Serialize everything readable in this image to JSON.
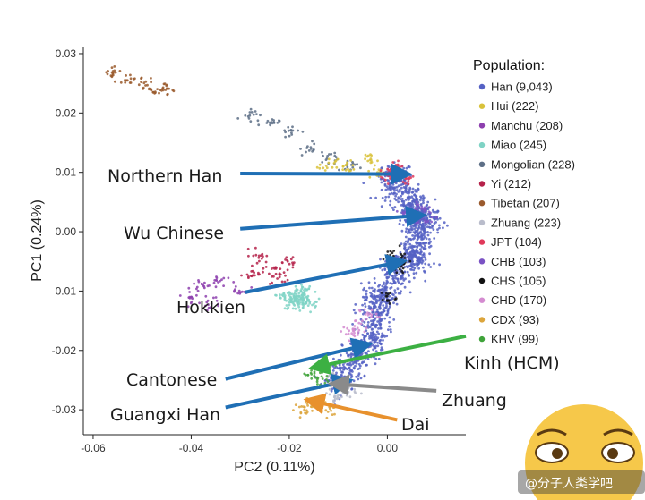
{
  "chart_data": {
    "type": "scatter",
    "xlabel": "PC2 (0.11%)",
    "ylabel": "PC1 (0.24%)",
    "xlim": [
      -0.062,
      0.016
    ],
    "ylim": [
      -0.0342,
      0.0312
    ],
    "xticks": [
      -0.06,
      -0.04,
      -0.02,
      0.0
    ],
    "xtick_labels": [
      "-0.06",
      "-0.04",
      "-0.02",
      "0.00"
    ],
    "yticks": [
      0.03,
      0.02,
      0.01,
      0.0,
      -0.01,
      -0.02,
      -0.03
    ],
    "ytick_labels": [
      "0.03",
      "0.02",
      "0.01",
      "0.00",
      "-0.01",
      "-0.02",
      "-0.03"
    ],
    "grid": false,
    "legend": {
      "title": "Population:",
      "position": "right",
      "entries": [
        {
          "label": "Han (9,043)",
          "color": "#5561c4"
        },
        {
          "label": "Hui (222)",
          "color": "#d9c23a"
        },
        {
          "label": "Manchu (208)",
          "color": "#8d3fae"
        },
        {
          "label": "Miao (245)",
          "color": "#7fd3c5"
        },
        {
          "label": "Mongolian (228)",
          "color": "#5d6f86"
        },
        {
          "label": "Yi (212)",
          "color": "#b5224a"
        },
        {
          "label": "Tibetan (207)",
          "color": "#9a5a2d"
        },
        {
          "label": "Zhuang (223)",
          "color": "#b9bccb"
        },
        {
          "label": "JPT (104)",
          "color": "#e0395a"
        },
        {
          "label": "CHB (103)",
          "color": "#7a52c4"
        },
        {
          "label": "CHS (105)",
          "color": "#111111"
        },
        {
          "label": "CHD (170)",
          "color": "#d48bd0"
        },
        {
          "label": "CDX (93)",
          "color": "#dca53c"
        },
        {
          "label": "KHV (99)",
          "color": "#3fa33a"
        }
      ]
    },
    "clusters": [
      {
        "series": "Han (9,043)",
        "points": [
          [
            0.002,
            0.009
          ],
          [
            0.004,
            0.006
          ],
          [
            0.006,
            0.003
          ],
          [
            0.007,
            0.001
          ],
          [
            0.006,
            -0.002
          ],
          [
            0.005,
            -0.004
          ],
          [
            0.003,
            -0.006
          ],
          [
            0.001,
            -0.008
          ],
          [
            -0.001,
            -0.011
          ],
          [
            -0.002,
            -0.014
          ],
          [
            -0.003,
            -0.017
          ],
          [
            -0.004,
            -0.019
          ],
          [
            -0.006,
            -0.021
          ],
          [
            -0.008,
            -0.023
          ],
          [
            -0.01,
            -0.025
          ],
          [
            0.001,
            0.008
          ],
          [
            0.005,
            0.004
          ],
          [
            0.008,
            0.002
          ],
          [
            0.006,
            -0.005
          ],
          [
            -0.003,
            -0.012
          ]
        ]
      },
      {
        "series": "Tibetan (207)",
        "points": [
          [
            -0.056,
            0.027
          ],
          [
            -0.053,
            0.026
          ],
          [
            -0.05,
            0.025
          ],
          [
            -0.047,
            0.024
          ],
          [
            -0.045,
            0.024
          ]
        ]
      },
      {
        "series": "Mongolian (228)",
        "points": [
          [
            -0.028,
            0.02
          ],
          [
            -0.024,
            0.018
          ],
          [
            -0.02,
            0.017
          ],
          [
            -0.016,
            0.014
          ],
          [
            -0.012,
            0.012
          ],
          [
            -0.008,
            0.011
          ]
        ]
      },
      {
        "series": "Hui (222)",
        "points": [
          [
            -0.012,
            0.011
          ],
          [
            -0.008,
            0.011
          ],
          [
            -0.004,
            0.012
          ],
          [
            -0.002,
            0.01
          ]
        ]
      },
      {
        "series": "Yi (212)",
        "points": [
          [
            -0.026,
            -0.004
          ],
          [
            -0.024,
            -0.006
          ],
          [
            -0.022,
            -0.008
          ],
          [
            -0.02,
            -0.005
          ],
          [
            -0.028,
            -0.007
          ]
        ]
      },
      {
        "series": "Miao (245)",
        "points": [
          [
            -0.02,
            -0.011
          ],
          [
            -0.018,
            -0.011
          ],
          [
            -0.016,
            -0.012
          ],
          [
            -0.017,
            -0.01
          ],
          [
            -0.019,
            -0.012
          ]
        ]
      },
      {
        "series": "Manchu (208)",
        "points": [
          [
            -0.038,
            -0.009
          ],
          [
            -0.034,
            -0.008
          ],
          [
            -0.03,
            -0.01
          ],
          [
            -0.04,
            -0.011
          ],
          [
            -0.036,
            -0.012
          ]
        ]
      },
      {
        "series": "JPT (104)",
        "points": [
          [
            0.0,
            0.009
          ],
          [
            0.002,
            0.01
          ],
          [
            0.004,
            0.009
          ],
          [
            0.001,
            0.011
          ]
        ]
      },
      {
        "series": "CHB (103)",
        "points": [
          [
            0.004,
            0.003
          ],
          [
            0.006,
            0.004
          ],
          [
            0.008,
            0.003
          ],
          [
            0.007,
            0.002
          ]
        ]
      },
      {
        "series": "CHS (105)",
        "points": [
          [
            0.001,
            -0.004
          ],
          [
            0.002,
            -0.006
          ],
          [
            0.003,
            -0.005
          ],
          [
            0.0,
            -0.011
          ]
        ]
      },
      {
        "series": "CHD (170)",
        "points": [
          [
            -0.004,
            -0.014
          ],
          [
            -0.006,
            -0.016
          ],
          [
            -0.008,
            -0.017
          ]
        ]
      },
      {
        "series": "Zhuang (223)",
        "points": [
          [
            -0.012,
            -0.024
          ],
          [
            -0.01,
            -0.026
          ],
          [
            -0.008,
            -0.027
          ],
          [
            -0.011,
            -0.028
          ]
        ]
      },
      {
        "series": "KHV (99)",
        "points": [
          [
            -0.015,
            -0.024
          ],
          [
            -0.013,
            -0.023
          ],
          [
            -0.014,
            -0.025
          ]
        ]
      },
      {
        "series": "CDX (93)",
        "points": [
          [
            -0.016,
            -0.029
          ],
          [
            -0.014,
            -0.029
          ],
          [
            -0.012,
            -0.03
          ],
          [
            -0.017,
            -0.03
          ]
        ]
      }
    ],
    "annotations": [
      {
        "text": "Northern Han",
        "color": "#1f6fb5",
        "from": [
          -0.03,
          0.0098
        ],
        "to": [
          0.003,
          0.0097
        ]
      },
      {
        "text": "Wu Chinese",
        "color": "#1f6fb5",
        "from": [
          -0.03,
          0.0005
        ],
        "to": [
          0.006,
          0.0027
        ]
      },
      {
        "text": "Hokkien",
        "color": "#1f6fb5",
        "from": [
          -0.029,
          -0.0102
        ],
        "to": [
          0.002,
          -0.0052
        ]
      },
      {
        "text": "Cantonese",
        "color": "#1f6fb5",
        "from": [
          -0.033,
          -0.0248
        ],
        "to": [
          -0.005,
          -0.0192
        ]
      },
      {
        "text": "Guangxi Han",
        "color": "#1f6fb5",
        "from": [
          -0.033,
          -0.0296
        ],
        "to": [
          -0.009,
          -0.0253
        ]
      },
      {
        "text": "Kinh (HCM)",
        "color": "#3cb043",
        "from": [
          0.016,
          -0.0176
        ],
        "to": [
          -0.014,
          -0.0227
        ]
      },
      {
        "text": "Zhuang",
        "color": "#8a8a8a",
        "from": [
          0.01,
          -0.0268
        ],
        "to": [
          -0.01,
          -0.0257
        ]
      },
      {
        "text": "Dai",
        "color": "#e8912d",
        "from": [
          0.002,
          -0.0317
        ],
        "to": [
          -0.015,
          -0.0286
        ]
      }
    ]
  },
  "watermark": {
    "text": "@分子人类学吧"
  }
}
